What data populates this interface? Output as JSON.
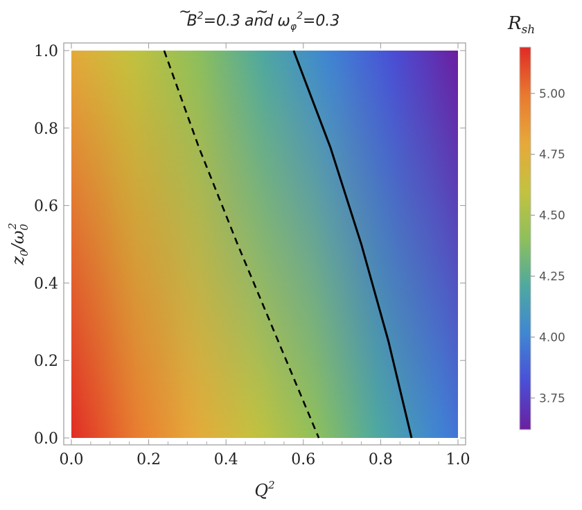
{
  "chart_data": {
    "type": "heatmap",
    "title": {
      "B_symbol": "B",
      "B_exponent": "2",
      "B_value": "=0.3",
      "joiner": "and",
      "omega_symbol": "ω",
      "omega_subscript": "φ",
      "omega_exponent": "2",
      "omega_value": "=0.3"
    },
    "xlabel": {
      "base": "Q",
      "sup": "2"
    },
    "ylabel": {
      "base": "z",
      "sub": "0",
      "slash": "/",
      "base2": "ω",
      "sub2": "0",
      "sup2": "2"
    },
    "xlim": [
      0,
      1
    ],
    "ylim": [
      0,
      1
    ],
    "x_ticks": [
      "0.0",
      "0.2",
      "0.4",
      "0.6",
      "0.8",
      "1.0"
    ],
    "y_ticks": [
      "0.0",
      "0.2",
      "0.4",
      "0.6",
      "0.8",
      "1.0"
    ],
    "colorbar": {
      "label": {
        "base": "R",
        "sub": "sh"
      },
      "range": [
        3.62,
        5.19
      ],
      "ticks": [
        "3.75",
        "4.00",
        "4.25",
        "4.50",
        "4.75",
        "5.00"
      ],
      "tick_values": [
        3.75,
        4.0,
        4.25,
        4.5,
        4.75,
        5.0
      ],
      "colormap": [
        "#6b1fa0",
        "#4a4fd6",
        "#3f86d4",
        "#4ea9a0",
        "#8fc05a",
        "#c4c23e",
        "#e7a83a",
        "#e8792f",
        "#e02b25"
      ]
    },
    "field_corners": {
      "x0_y0": 5.19,
      "x1_y0": 3.95,
      "x0_y1": 4.78,
      "x1_y1": 3.62
    },
    "contours": [
      {
        "style": "dashed",
        "points": [
          [
            0.24,
            1.0
          ],
          [
            0.33,
            0.75
          ],
          [
            0.43,
            0.5
          ],
          [
            0.535,
            0.25
          ],
          [
            0.64,
            0.0
          ]
        ]
      },
      {
        "style": "solid",
        "points": [
          [
            0.575,
            1.0
          ],
          [
            0.67,
            0.75
          ],
          [
            0.75,
            0.5
          ],
          [
            0.82,
            0.25
          ],
          [
            0.88,
            0.0
          ]
        ]
      }
    ]
  }
}
